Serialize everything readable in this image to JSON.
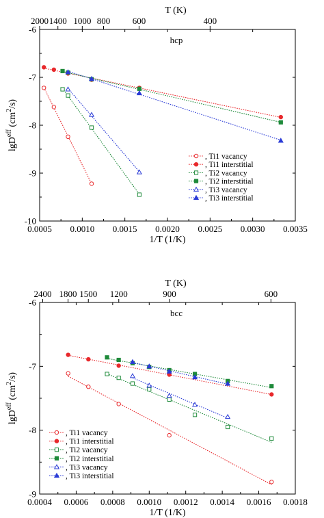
{
  "chart_data": [
    {
      "type": "scatter",
      "panel_label": "hcp",
      "xlabel": "1/T (1/K)",
      "ylabel_main": "lgD",
      "ylabel_sup": "eff",
      "ylabel_unit": " (cm",
      "ylabel_unit_sup": "2",
      "ylabel_unit_end": "/s)",
      "top_axis_label": "T (K)",
      "xlim": [
        0.0005,
        0.0035
      ],
      "ylim": [
        -10,
        -6
      ],
      "xticks": [
        0.0005,
        0.001,
        0.0015,
        0.002,
        0.0025,
        0.003,
        0.0035
      ],
      "xtick_labels": [
        "0.0005",
        "0.0010",
        "0.0015",
        "0.0020",
        "0.0025",
        "0.0030",
        "0.0035"
      ],
      "yticks": [
        -10,
        -9,
        -8,
        -7,
        -6
      ],
      "ytick_labels": [
        "-10",
        "-9",
        "-8",
        "-7",
        "-6"
      ],
      "top_ticks": [
        2000,
        1400,
        1000,
        800,
        600,
        400
      ],
      "top_tick_labels": [
        "2000",
        "1400",
        "1000",
        "800",
        "600",
        "400"
      ],
      "grid": false,
      "legend_position": "lower-right",
      "series": [
        {
          "name": ", Ti1 vacancy",
          "color": "#e8292c",
          "marker": "circle-open",
          "x": [
            0.00055,
            0.000667,
            0.000833,
            0.00111
          ],
          "y": [
            -7.22,
            -7.62,
            -8.24,
            -9.22
          ]
        },
        {
          "name": ", Ti1 interstitial",
          "color": "#e8292c",
          "marker": "circle-filled",
          "x": [
            0.00055,
            0.000667,
            0.000833,
            0.00111,
            0.00167,
            0.00333
          ],
          "y": [
            -6.79,
            -6.84,
            -6.92,
            -7.05,
            -7.22,
            -7.83
          ]
        },
        {
          "name": ", Ti2 vacancy",
          "color": "#1e8a3a",
          "marker": "square-open",
          "x": [
            0.000769,
            0.000833,
            0.00111,
            0.00167
          ],
          "y": [
            -7.25,
            -7.38,
            -8.05,
            -9.45
          ]
        },
        {
          "name": ", Ti2 interstitial",
          "color": "#1e8a3a",
          "marker": "square-filled",
          "x": [
            0.000769,
            0.000833,
            0.00111,
            0.00167,
            0.00333
          ],
          "y": [
            -6.87,
            -6.9,
            -7.04,
            -7.24,
            -7.94
          ]
        },
        {
          "name": ", Ti3 vacancy",
          "color": "#2a3bd6",
          "marker": "triangle-open",
          "x": [
            0.000833,
            0.00111,
            0.00167
          ],
          "y": [
            -7.25,
            -7.78,
            -8.98
          ]
        },
        {
          "name": ", Ti3 interstitial",
          "color": "#2a3bd6",
          "marker": "triangle-filled",
          "x": [
            0.000833,
            0.00111,
            0.00167,
            0.00333
          ],
          "y": [
            -6.89,
            -7.03,
            -7.33,
            -8.32
          ]
        }
      ]
    },
    {
      "type": "scatter",
      "panel_label": "bcc",
      "xlabel": "1/T (1/K)",
      "ylabel_main": "lgD",
      "ylabel_sup": "eff",
      "ylabel_unit": " (cm",
      "ylabel_unit_sup": "2",
      "ylabel_unit_end": "/s)",
      "top_axis_label": "T (K)",
      "xlim": [
        0.0004,
        0.0018
      ],
      "ylim": [
        -9,
        -6
      ],
      "xticks": [
        0.0004,
        0.0006,
        0.0008,
        0.001,
        0.0012,
        0.0014,
        0.0016,
        0.0018
      ],
      "xtick_labels": [
        "0.0004",
        "0.0006",
        "0.0008",
        "0.0010",
        "0.0012",
        "0.0014",
        "0.0016",
        "0.0018"
      ],
      "yticks": [
        -9,
        -8,
        -7,
        -6
      ],
      "ytick_labels": [
        "-9",
        "-8",
        "-7",
        "-6"
      ],
      "top_ticks": [
        2400,
        1800,
        1500,
        1200,
        900,
        600
      ],
      "top_tick_labels": [
        "2400",
        "1800",
        "1500",
        "1200",
        "900",
        "600"
      ],
      "grid": false,
      "legend_position": "lower-left",
      "series": [
        {
          "name": ", Ti1 vacancy",
          "color": "#e8292c",
          "marker": "circle-open",
          "x": [
            0.000556,
            0.000667,
            0.000833,
            0.00111,
            0.00167
          ],
          "y": [
            -7.11,
            -7.32,
            -7.59,
            -8.08,
            -8.81
          ]
        },
        {
          "name": ", Ti1 interstitial",
          "color": "#e8292c",
          "marker": "circle-filled",
          "x": [
            0.000556,
            0.000667,
            0.000833,
            0.00111,
            0.00167
          ],
          "y": [
            -6.82,
            -6.89,
            -6.99,
            -7.13,
            -7.44
          ]
        },
        {
          "name": ", Ti2 vacancy",
          "color": "#1e8a3a",
          "marker": "square-open",
          "x": [
            0.000769,
            0.000833,
            0.000909,
            0.001,
            0.00111,
            0.00125,
            0.00143,
            0.00167
          ],
          "y": [
            -7.12,
            -7.18,
            -7.27,
            -7.36,
            -7.52,
            -7.76,
            -7.95,
            -8.13
          ]
        },
        {
          "name": ", Ti2 interstitial",
          "color": "#1e8a3a",
          "marker": "square-filled",
          "x": [
            0.000769,
            0.000833,
            0.000909,
            0.001,
            0.00111,
            0.00125,
            0.00143,
            0.00167
          ],
          "y": [
            -6.86,
            -6.9,
            -6.95,
            -7.01,
            -7.06,
            -7.12,
            -7.23,
            -7.31
          ]
        },
        {
          "name": ", Ti3 vacancy",
          "color": "#2a3bd6",
          "marker": "triangle-open",
          "x": [
            0.000909,
            0.001,
            0.00111,
            0.00125,
            0.00143
          ],
          "y": [
            -7.15,
            -7.3,
            -7.46,
            -7.6,
            -7.79
          ]
        },
        {
          "name": ", Ti3 interstitial",
          "color": "#2a3bd6",
          "marker": "triangle-filled",
          "x": [
            0.000909,
            0.001,
            0.00111,
            0.00125,
            0.00143
          ],
          "y": [
            -6.93,
            -7.0,
            -7.08,
            -7.17,
            -7.27
          ]
        }
      ]
    }
  ]
}
